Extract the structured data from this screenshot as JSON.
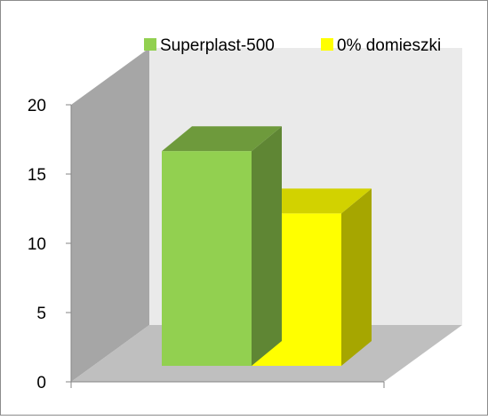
{
  "chart_data": {
    "type": "bar",
    "title": "",
    "xlabel": "",
    "ylabel": "",
    "categories": [
      ""
    ],
    "series": [
      {
        "name": "Superplast-500",
        "values": [
          15.5
        ],
        "color": "#92D050"
      },
      {
        "name": "0% domieszki",
        "values": [
          11
        ],
        "color": "#FFFF00"
      }
    ],
    "ylim": [
      0,
      20
    ],
    "yticks": [
      "0",
      "5",
      "10",
      "15",
      "20"
    ],
    "grid": false,
    "legend_position": "top-right",
    "style": "3d-column",
    "colors": {
      "back_wall": "#EAEAEA",
      "side_wall": "#A6A6A6",
      "floor": "#BFBFBF",
      "green_top": "#6E9A3C",
      "green_side": "#5F8634",
      "yellow_top": "#D2D200",
      "yellow_side": "#A6A600"
    }
  }
}
